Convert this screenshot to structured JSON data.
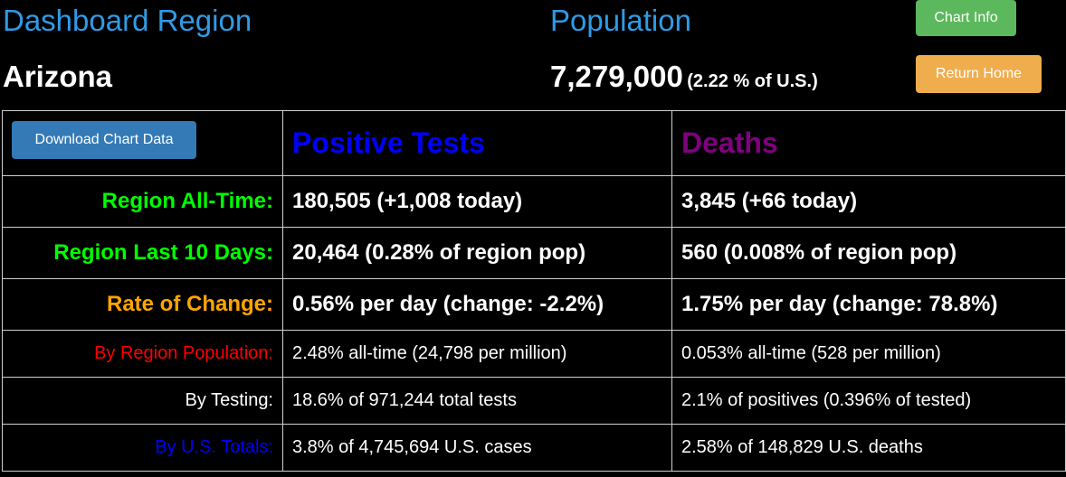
{
  "header": {
    "region_label": "Dashboard Region",
    "region_name": "Arizona",
    "population_label": "Population",
    "population_value": "7,279,000",
    "population_pct": "(2.22 % of U.S.)",
    "chart_info_label": "Chart Info",
    "return_home_label": "Return Home"
  },
  "table": {
    "download_label": "Download Chart Data",
    "col_positive": "Positive Tests",
    "col_deaths": "Deaths",
    "rows": [
      {
        "label": "Region All-Time:",
        "label_color": "#00ff00",
        "positive": "180,505 (+1,008 today)",
        "deaths": "3,845 (+66 today)"
      },
      {
        "label": "Region Last 10 Days:",
        "label_color": "#00ff00",
        "positive": "20,464 (0.28% of region pop)",
        "deaths": "560 (0.008% of region pop)"
      },
      {
        "label": "Rate of Change:",
        "label_color": "#ffa500",
        "positive": "0.56% per day (change: -2.2%)",
        "deaths": "1.75% per day (change: 78.8%)"
      },
      {
        "label": "By Region Population:",
        "label_color": "#ff0000",
        "positive": "2.48% all-time (24,798 per million)",
        "deaths": "0.053% all-time (528 per million)"
      },
      {
        "label": "By Testing:",
        "label_color": "#ffffff",
        "positive": "18.6% of 971,244 total tests",
        "deaths": "2.1% of positives (0.396% of tested)"
      },
      {
        "label": "By U.S. Totals:",
        "label_color": "#0000ff",
        "positive": "3.8% of 4,745,694 U.S. cases",
        "deaths": "2.58% of 148,829 U.S. deaths"
      }
    ]
  },
  "colors": {
    "header_label": "#2f9be6",
    "chart_info_button": "#5cb85c",
    "return_home_button": "#f0ad4e",
    "download_button": "#337ab7",
    "positive_header": "#0000ff",
    "deaths_header": "#800080",
    "background": "#000000"
  }
}
